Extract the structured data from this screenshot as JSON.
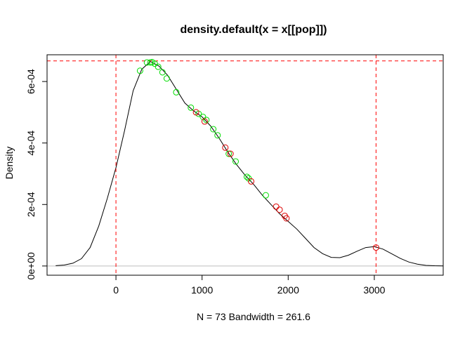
{
  "chart_data": {
    "type": "line",
    "title": "density.default(x = x[[pop]])",
    "xlabel": "N = 73   Bandwidth = 261.6",
    "ylabel": "Density",
    "xlim": [
      -800,
      3800
    ],
    "ylim": [
      -3e-05,
      0.000687
    ],
    "x_ticks": [
      0,
      1000,
      2000,
      3000
    ],
    "x_tick_labels": [
      "0",
      "1000",
      "2000",
      "3000"
    ],
    "y_ticks": [
      0,
      0.0002,
      0.0004,
      0.0006
    ],
    "y_tick_labels": [
      "0e+00",
      "2e-04",
      "4e-04",
      "6e-04"
    ],
    "grid": false,
    "legend": "none",
    "colors": {
      "curve": "#000000",
      "reference_lines": "#ff0000",
      "points_group_a": "#00dd00",
      "points_group_b": "#dd0000",
      "zero_line": "#bebebe"
    },
    "density_curve": {
      "x": [
        -700,
        -600,
        -500,
        -400,
        -300,
        -200,
        -100,
        0,
        100,
        200,
        300,
        400,
        500,
        600,
        700,
        800,
        900,
        1000,
        1100,
        1200,
        1300,
        1400,
        1500,
        1600,
        1700,
        1800,
        1900,
        2000,
        2100,
        2200,
        2300,
        2400,
        2500,
        2600,
        2700,
        2800,
        2900,
        3000,
        3100,
        3200,
        3300,
        3400,
        3500,
        3600,
        3700,
        3800
      ],
      "y": [
        1e-06,
        3e-06,
        9e-06,
        2.4e-05,
        6e-05,
        0.00013,
        0.00022,
        0.00032,
        0.00044,
        0.00057,
        0.00064,
        0.000665,
        0.00065,
        0.00062,
        0.000575,
        0.00053,
        0.000505,
        0.000485,
        0.000455,
        0.000415,
        0.00037,
        0.00033,
        0.000295,
        0.000265,
        0.00023,
        0.0002,
        0.00017,
        0.000145,
        0.00012,
        9e-05,
        6e-05,
        4e-05,
        2.8e-05,
        2.7e-05,
        3.5e-05,
        4.8e-05,
        6e-05,
        6.3e-05,
        5.5e-05,
        4e-05,
        2.5e-05,
        1.3e-05,
        6e-06,
        2e-06,
        8e-07,
        3e-07
      ]
    },
    "reference_lines": {
      "vertical_x": [
        0,
        3020
      ],
      "horizontal_y": [
        0.000667
      ]
    },
    "series": [
      {
        "color": "#00dd00",
        "points": [
          {
            "x": 280,
            "y": 0.000635
          },
          {
            "x": 360,
            "y": 0.000662
          },
          {
            "x": 400,
            "y": 0.000662
          },
          {
            "x": 420,
            "y": 0.000663
          },
          {
            "x": 450,
            "y": 0.000658
          },
          {
            "x": 490,
            "y": 0.000648
          },
          {
            "x": 540,
            "y": 0.00063
          },
          {
            "x": 590,
            "y": 0.00061
          },
          {
            "x": 700,
            "y": 0.000565
          },
          {
            "x": 870,
            "y": 0.000515
          },
          {
            "x": 960,
            "y": 0.000495
          },
          {
            "x": 1010,
            "y": 0.000485
          },
          {
            "x": 1050,
            "y": 0.000475
          },
          {
            "x": 1130,
            "y": 0.000445
          },
          {
            "x": 1180,
            "y": 0.000425
          },
          {
            "x": 1310,
            "y": 0.000365
          },
          {
            "x": 1390,
            "y": 0.00034
          },
          {
            "x": 1520,
            "y": 0.00029
          },
          {
            "x": 1540,
            "y": 0.000285
          },
          {
            "x": 1740,
            "y": 0.00023
          }
        ]
      },
      {
        "color": "#dd0000",
        "points": [
          {
            "x": 930,
            "y": 0.0005
          },
          {
            "x": 1030,
            "y": 0.00047
          },
          {
            "x": 1270,
            "y": 0.000385
          },
          {
            "x": 1330,
            "y": 0.000365
          },
          {
            "x": 1570,
            "y": 0.000275
          },
          {
            "x": 1860,
            "y": 0.000193
          },
          {
            "x": 1900,
            "y": 0.000183
          },
          {
            "x": 1960,
            "y": 0.000163
          },
          {
            "x": 1980,
            "y": 0.000155
          },
          {
            "x": 3020,
            "y": 6e-05
          }
        ]
      }
    ]
  }
}
